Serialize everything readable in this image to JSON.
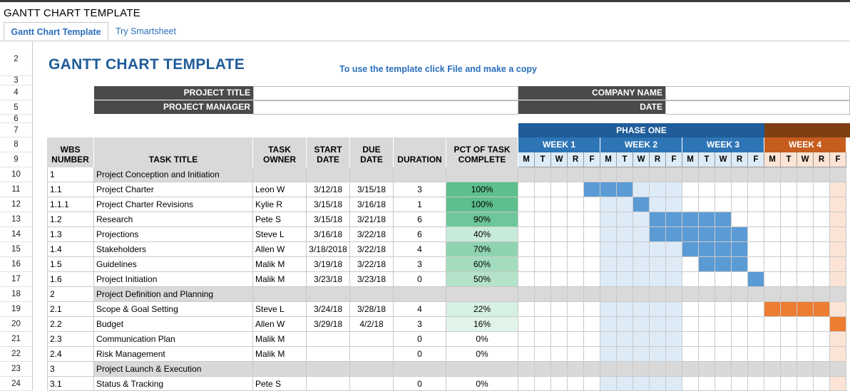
{
  "doc_title": "GANTT CHART TEMPLATE",
  "tabs": [
    {
      "label": "Gantt Chart Template",
      "active": true
    },
    {
      "label": "Try Smartsheet",
      "active": false
    }
  ],
  "row_numbers": [
    "2",
    "3",
    "4",
    "5",
    "6",
    "7",
    "8",
    "9",
    "10",
    "11",
    "12",
    "13",
    "14",
    "15",
    "16",
    "17",
    "18",
    "19",
    "20",
    "21",
    "22",
    "23",
    "24"
  ],
  "title": "GANTT CHART TEMPLATE",
  "instruction": "To use the template click File and make a copy",
  "project_fields": {
    "project_title": "PROJECT TITLE",
    "project_manager": "PROJECT MANAGER",
    "company_name": "COMPANY NAME",
    "date": "DATE"
  },
  "phase_label": "PHASE ONE",
  "weeks": [
    "WEEK 1",
    "WEEK 2",
    "WEEK 3",
    "WEEK 4"
  ],
  "day_letters": [
    "M",
    "T",
    "W",
    "R",
    "F"
  ],
  "columns": {
    "wbs": "WBS NUMBER",
    "task": "TASK TITLE",
    "owner": "TASK OWNER",
    "start": "START DATE",
    "due": "DUE DATE",
    "duration": "DURATION",
    "pct": "PCT OF TASK COMPLETE"
  },
  "colors": {
    "dark_header": "#4a4a4a",
    "title_blue": "#1f5c99",
    "link_blue": "#2a6ebb",
    "week_blue": "#2e75b6",
    "week_orange": "#c65d1e",
    "bar_blue": "#5b9bd5",
    "bar_orange": "#ed7d31",
    "section_gray": "#d9d9d9",
    "week2_shade": "#ddebf7",
    "week4_shade": "#fbe4d5"
  },
  "tasks": [
    {
      "wbs": "1",
      "title": "Project Conception and Initiation",
      "owner": "",
      "start": "",
      "due": "",
      "duration": "",
      "pct": "",
      "section": true,
      "bar": null
    },
    {
      "wbs": "1.1",
      "title": "Project Charter",
      "owner": "Leon W",
      "start": "3/12/18",
      "due": "3/15/18",
      "duration": "3",
      "pct": "100%",
      "pct_value": 1.0,
      "section": false,
      "bar": {
        "start_day": 4,
        "span": 3,
        "color": "blue"
      }
    },
    {
      "wbs": "1.1.1",
      "title": "Project Charter Revisions",
      "owner": "Kylie R",
      "start": "3/15/18",
      "due": "3/16/18",
      "duration": "1",
      "pct": "100%",
      "pct_value": 1.0,
      "section": false,
      "bar": {
        "start_day": 7,
        "span": 1,
        "color": "blue"
      }
    },
    {
      "wbs": "1.2",
      "title": "Research",
      "owner": "Pete S",
      "start": "3/15/18",
      "due": "3/21/18",
      "duration": "6",
      "pct": "90%",
      "pct_value": 0.9,
      "section": false,
      "bar": {
        "start_day": 8,
        "span": 5,
        "color": "blue"
      }
    },
    {
      "wbs": "1.3",
      "title": "Projections",
      "owner": "Steve L",
      "start": "3/16/18",
      "due": "3/22/18",
      "duration": "6",
      "pct": "40%",
      "pct_value": 0.4,
      "section": false,
      "bar": {
        "start_day": 8,
        "span": 6,
        "color": "blue"
      }
    },
    {
      "wbs": "1.4",
      "title": "Stakeholders",
      "owner": "Allen W",
      "start": "3/18/2018",
      "due": "3/22/18",
      "duration": "4",
      "pct": "70%",
      "pct_value": 0.7,
      "section": false,
      "bar": {
        "start_day": 10,
        "span": 4,
        "color": "blue"
      }
    },
    {
      "wbs": "1.5",
      "title": "Guidelines",
      "owner": "Malik M",
      "start": "3/19/18",
      "due": "3/22/18",
      "duration": "3",
      "pct": "60%",
      "pct_value": 0.6,
      "section": false,
      "bar": {
        "start_day": 11,
        "span": 3,
        "color": "blue"
      }
    },
    {
      "wbs": "1.6",
      "title": "Project Initiation",
      "owner": "Malik M",
      "start": "3/23/18",
      "due": "3/23/18",
      "duration": "0",
      "pct": "50%",
      "pct_value": 0.5,
      "section": false,
      "bar": {
        "start_day": 14,
        "span": 1,
        "color": "blue"
      }
    },
    {
      "wbs": "2",
      "title": "Project Definition and Planning",
      "owner": "",
      "start": "",
      "due": "",
      "duration": "",
      "pct": "",
      "section": true,
      "bar": null
    },
    {
      "wbs": "2.1",
      "title": "Scope & Goal Setting",
      "owner": "Steve L",
      "start": "3/24/18",
      "due": "3/28/18",
      "duration": "4",
      "pct": "22%",
      "pct_value": 0.22,
      "section": false,
      "bar": {
        "start_day": 15,
        "span": 4,
        "color": "orange"
      }
    },
    {
      "wbs": "2.2",
      "title": "Budget",
      "owner": "Allen W",
      "start": "3/29/18",
      "due": "4/2/18",
      "duration": "3",
      "pct": "16%",
      "pct_value": 0.16,
      "section": false,
      "bar": {
        "start_day": 19,
        "span": 1,
        "color": "orange"
      }
    },
    {
      "wbs": "2.3",
      "title": "Communication Plan",
      "owner": "Malik M",
      "start": "",
      "due": "",
      "duration": "0",
      "pct": "0%",
      "pct_value": 0,
      "section": false,
      "bar": null
    },
    {
      "wbs": "2.4",
      "title": "Risk Management",
      "owner": "Malik M",
      "start": "",
      "due": "",
      "duration": "0",
      "pct": "0%",
      "pct_value": 0,
      "section": false,
      "bar": null
    },
    {
      "wbs": "3",
      "title": "Project Launch & Execution",
      "owner": "",
      "start": "",
      "due": "",
      "duration": "",
      "pct": "",
      "section": true,
      "bar": null
    },
    {
      "wbs": "3.1",
      "title": "Status & Tracking",
      "owner": "Pete S",
      "start": "",
      "due": "",
      "duration": "0",
      "pct": "0%",
      "pct_value": 0,
      "section": false,
      "bar": null
    }
  ]
}
